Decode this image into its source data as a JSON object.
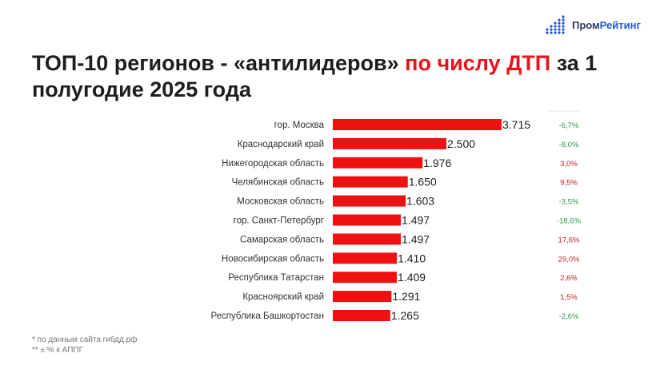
{
  "logo": {
    "part1": "Пром",
    "part2": "Рейтинг",
    "icon": "dot-grid-chart-icon"
  },
  "title": {
    "part1": "ТОП-10 регионов - «антилидеров» ",
    "highlight": "по числу ДТП",
    "part2": " за 1 полугодие 2025 года"
  },
  "colors": {
    "bar": "#ee1111",
    "positive_change": "#c0202a",
    "negative_change": "#2a9a4a",
    "title_highlight": "#e8141c"
  },
  "chart_data": {
    "type": "bar",
    "orientation": "horizontal",
    "title": "ТОП-10 регионов - «антилидеров» по числу ДТП за 1 полугодие 2025 года",
    "categories": [
      "гор. Москва",
      "Краснодарский край",
      "Нижегородская область",
      "Челябинская область",
      "Московская область",
      "гор. Санкт-Петербург",
      "Самарская область",
      "Новосибирская область",
      "Республика Татарстан",
      "Красноярский край",
      "Республика Башкортостан"
    ],
    "values": [
      3715,
      2500,
      1976,
      1650,
      1603,
      1497,
      1497,
      1410,
      1409,
      1291,
      1265
    ],
    "value_labels": [
      "3.715",
      "2.500",
      "1.976",
      "1.650",
      "1.603",
      "1.497",
      "1.497",
      "1.410",
      "1.409",
      "1.291",
      "1.265"
    ],
    "changes": [
      -6.7,
      -8.0,
      3.0,
      9.5,
      -3.5,
      -18.6,
      17.6,
      29.0,
      2.6,
      1.5,
      -2.6
    ],
    "change_labels": [
      "-6,7%",
      "-8,0%",
      "3,0%",
      "9,5%",
      "-3,5%",
      "-18,6%",
      "17,6%",
      "29,0%",
      "2,6%",
      "1,5%",
      "-2,6%"
    ],
    "xlim": [
      0,
      3715
    ],
    "grid": false,
    "legend": "none"
  },
  "footnotes": [
    "* по данным сайта гибдд.рф",
    "** ± % к АППГ"
  ]
}
